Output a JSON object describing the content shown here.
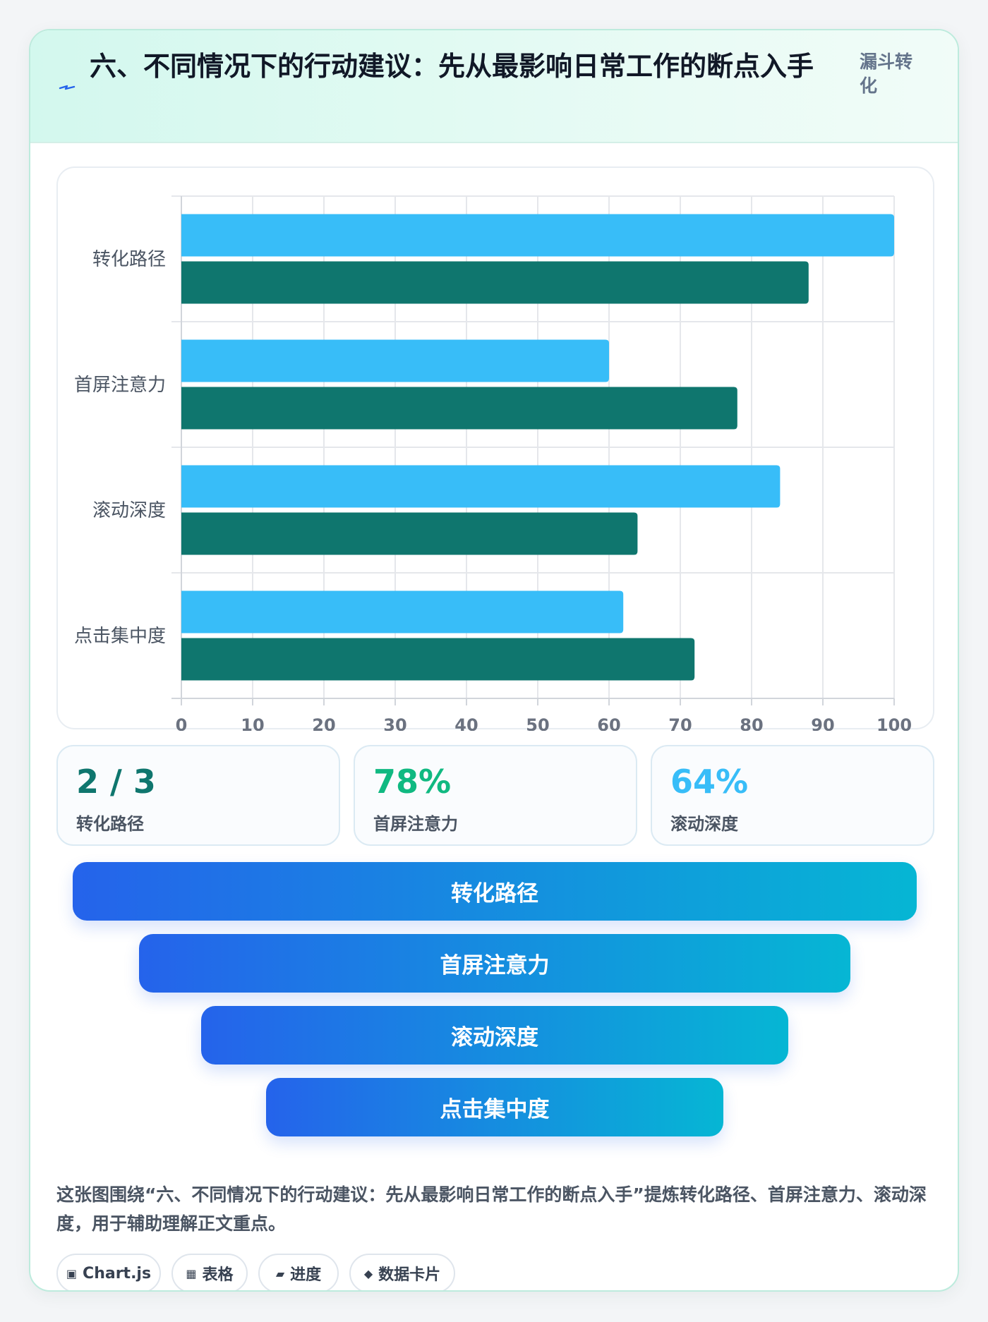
{
  "header": {
    "title": "六、不同情况下的行动建议：先从最影响日常工作的断点入手",
    "tag": "漏斗转化"
  },
  "colors": {
    "series_a": "#38bdf8",
    "series_b": "#0f766e",
    "stat_1": "#0f766e",
    "stat_2": "#10b981",
    "stat_3": "#38bdf8"
  },
  "chart_data": {
    "type": "bar",
    "orientation": "horizontal",
    "categories": [
      "转化路径",
      "首屏注意力",
      "滚动深度",
      "点击集中度"
    ],
    "series": [
      {
        "values": [
          100,
          60,
          84,
          62
        ]
      },
      {
        "values": [
          88,
          78,
          64,
          72
        ]
      }
    ],
    "xlim": [
      0,
      100
    ],
    "x_ticks": [
      "0",
      "10",
      "20",
      "30",
      "40",
      "50",
      "60",
      "70",
      "80",
      "90",
      "100"
    ],
    "grid": true,
    "legend": "none"
  },
  "stats": [
    {
      "value": "2 / 3",
      "label": "转化路径"
    },
    {
      "value": "78%",
      "label": "首屏注意力"
    },
    {
      "value": "64%",
      "label": "滚动深度"
    }
  ],
  "funnel": [
    "转化路径",
    "首屏注意力",
    "滚动深度",
    "点击集中度"
  ],
  "description": "这张图围绕“六、不同情况下的行动建议：先从最影响日常工作的断点入手”提炼转化路径、首屏注意力、滚动深度，用于辅助理解正文重点。",
  "chips": [
    {
      "icon": "▣",
      "label": "Chart.js"
    },
    {
      "icon": "▦",
      "label": "表格"
    },
    {
      "icon": "▰",
      "label": "进度"
    },
    {
      "icon": "◆",
      "label": "数据卡片"
    }
  ]
}
